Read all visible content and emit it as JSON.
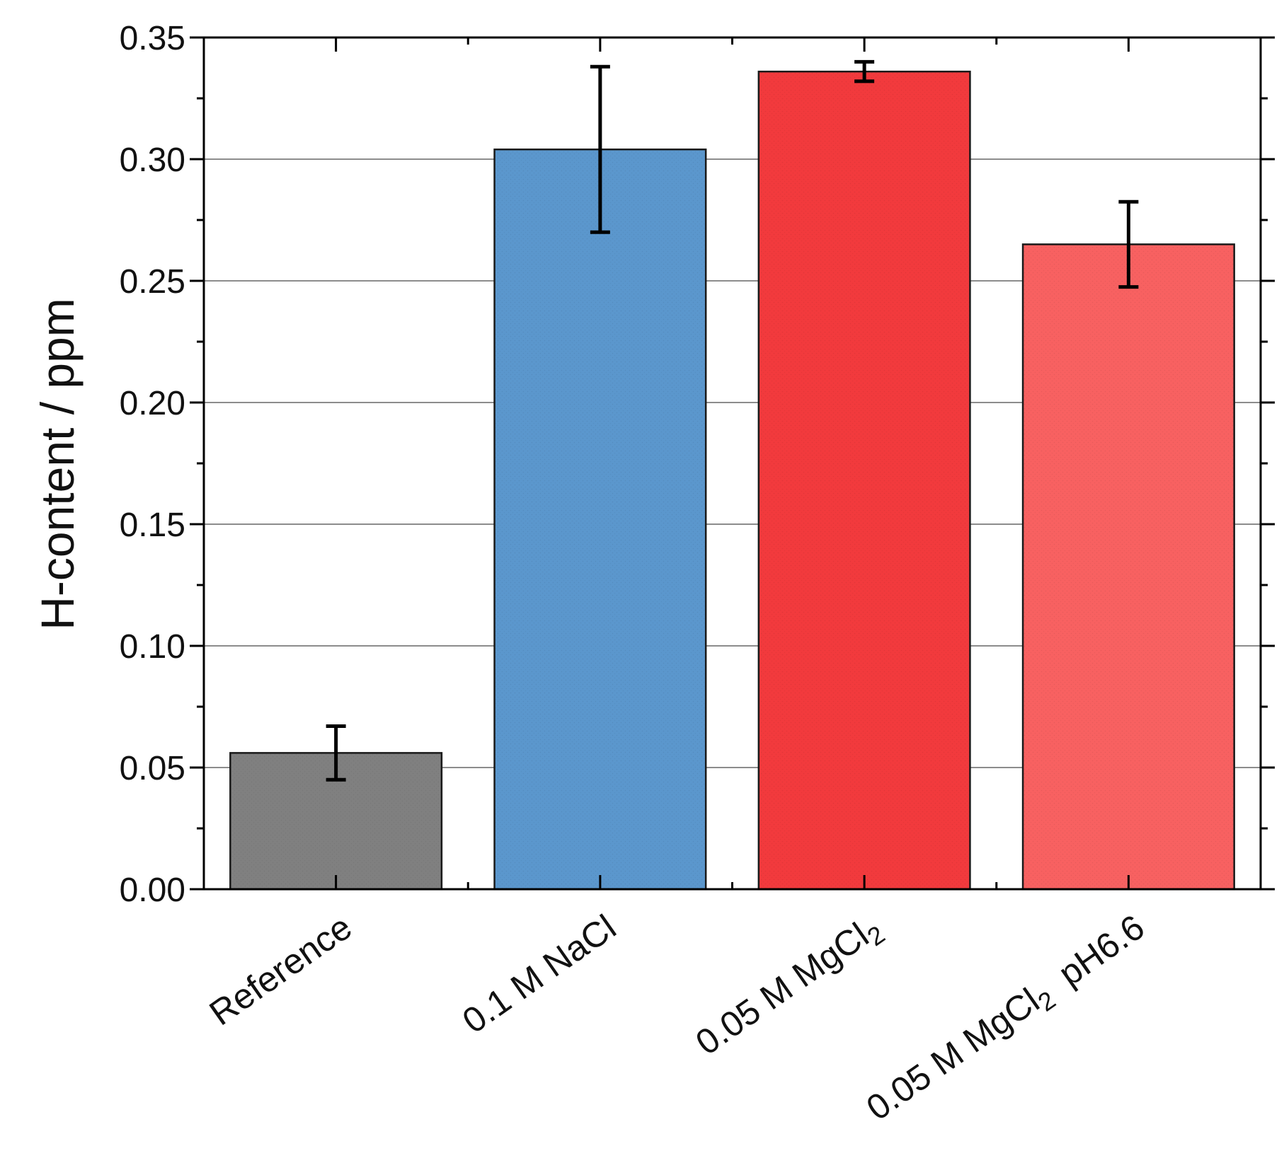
{
  "chart_data": {
    "type": "bar",
    "title": "",
    "xlabel": "",
    "ylabel": "H-content / ppm",
    "ylim": [
      0,
      0.35
    ],
    "yticks": [
      "0.00",
      "0.05",
      "0.10",
      "0.15",
      "0.20",
      "0.25",
      "0.30",
      "0.35"
    ],
    "grid": "horizontal",
    "categories": [
      {
        "label": "Reference",
        "sub": "",
        "suffix": ""
      },
      {
        "label": "0.1 M NaCl",
        "sub": "",
        "suffix": ""
      },
      {
        "label": "0.05 M MgCl",
        "sub": "2",
        "suffix": ""
      },
      {
        "label": "0.05 M MgCl",
        "sub": "2",
        "suffix": "  pH6.6"
      }
    ],
    "values": [
      0.056,
      0.304,
      0.336,
      0.265
    ],
    "errors": [
      0.011,
      0.034,
      0.004,
      0.0175
    ],
    "colors": [
      "#808080",
      "#5b97cd",
      "#f23a3d",
      "#f86161"
    ]
  }
}
